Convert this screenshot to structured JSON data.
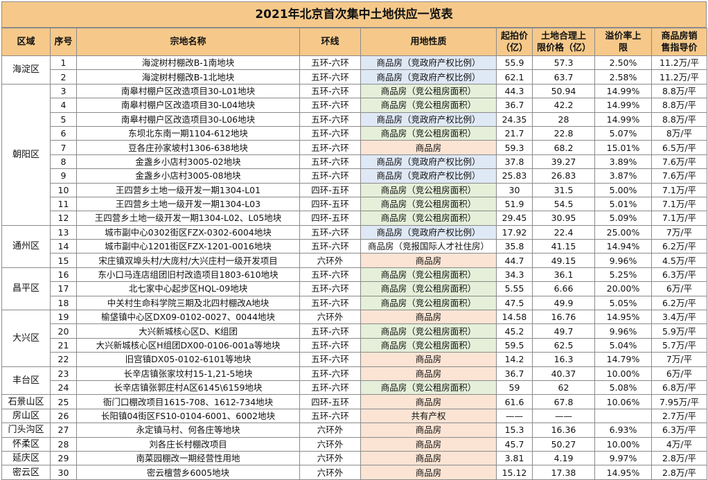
{
  "title": "2021年北京首次集中土地供应一览表",
  "header": {
    "district": "区域",
    "seq": "序号",
    "name": "宗地名称",
    "ring": "环线",
    "nature": "用地性质",
    "start_price": "起拍价（亿）",
    "cap_price": "土地合理上限价格（亿）",
    "premium": "溢价率上限",
    "guide_price": "商品房销售指导价"
  },
  "districts": [
    {
      "name": "海淀区",
      "span": 2
    },
    {
      "name": "朝阳区",
      "span": 10
    },
    {
      "name": "通州区",
      "span": 3
    },
    {
      "name": "昌平区",
      "span": 3
    },
    {
      "name": "大兴区",
      "span": 4
    },
    {
      "name": "丰台区",
      "span": 2
    },
    {
      "name": "石景山区",
      "span": 1
    },
    {
      "name": "房山区",
      "span": 1
    },
    {
      "name": "门头沟区",
      "span": 1
    },
    {
      "name": "怀柔区",
      "span": 1
    },
    {
      "name": "延庆区",
      "span": 1
    },
    {
      "name": "密云区",
      "span": 1
    }
  ],
  "rows": [
    {
      "seq": "1",
      "name": "海淀树村棚改B-1南地块",
      "ring": "五环-六环",
      "nature": "商品房（竞政府产权比例）",
      "start": "55.9",
      "cap": "57.3",
      "premium": "2.50%",
      "guide": "11.2万/平"
    },
    {
      "seq": "2",
      "name": "海淀树村棚改B-1北地块",
      "ring": "五环-六环",
      "nature": "商品房（竞政府产权比例）",
      "start": "62.1",
      "cap": "63.7",
      "premium": "2.58%",
      "guide": "11.2万/平"
    },
    {
      "seq": "3",
      "name": "南皋村棚户区改造项目30-L01地块",
      "ring": "五环-六环",
      "nature": "商品房（竞公租房面积）",
      "start": "44.3",
      "cap": "50.94",
      "premium": "14.99%",
      "guide": "8.8万/平"
    },
    {
      "seq": "4",
      "name": "南皋村棚户区改造项目30-L04地块",
      "ring": "五环-六环",
      "nature": "商品房（竞公租房面积）",
      "start": "36.7",
      "cap": "42.2",
      "premium": "14.99%",
      "guide": "8.8万/平"
    },
    {
      "seq": "5",
      "name": "南皋村棚户区改造项目30-L06地块",
      "ring": "五环-六环",
      "nature": "商品房（竞政府产权比例）",
      "start": "24.35",
      "cap": "28",
      "premium": "14.99%",
      "guide": "8.8万/平"
    },
    {
      "seq": "6",
      "name": "东坝北东南一期1104-612地块",
      "ring": "五环-六环",
      "nature": "商品房（竞公租房面积）",
      "start": "21.7",
      "cap": "22.8",
      "premium": "5.07%",
      "guide": "8万/平"
    },
    {
      "seq": "7",
      "name": "豆各庄孙家坡村1306-638地块",
      "ring": "五环-六环",
      "nature": "商品房",
      "start": "59.3",
      "cap": "68.2",
      "premium": "15.01%",
      "guide": "6.5万/平"
    },
    {
      "seq": "8",
      "name": "金盏乡小店村3005-02地块",
      "ring": "五环-六环",
      "nature": "商品房（竞政府产权比例）",
      "start": "37.8",
      "cap": "39.27",
      "premium": "3.89%",
      "guide": "7.6万/平"
    },
    {
      "seq": "9",
      "name": "金盏乡小店村3005-08地块",
      "ring": "五环-六环",
      "nature": "商品房（竞政府产权比例）",
      "start": "25.83",
      "cap": "26.83",
      "premium": "3.87%",
      "guide": "7.6万/平"
    },
    {
      "seq": "10",
      "name": "王四营乡土地一级开发一期1304-L01",
      "ring": "四环-五环",
      "nature": "商品房（竞公租房面积）",
      "start": "30",
      "cap": "31.5",
      "premium": "5.00%",
      "guide": "7.1万/平"
    },
    {
      "seq": "11",
      "name": "王四营乡土地一级开发一期1304-L03",
      "ring": "四环-五环",
      "nature": "商品房（竞公租房面积）",
      "start": "51.9",
      "cap": "54.5",
      "premium": "5.01%",
      "guide": "7.1万/平"
    },
    {
      "seq": "12",
      "name": "王四营乡土地一级开发一期1304-L02、L05地块",
      "ring": "四环-五环",
      "nature": "商品房（竞公租房面积）",
      "start": "29.45",
      "cap": "30.95",
      "premium": "5.09%",
      "guide": "7.1万/平"
    },
    {
      "seq": "13",
      "name": "城市副中心0302街区FZX-0302-6004地块",
      "ring": "五环-六环",
      "nature": "商品房（竞政府产权比例）",
      "start": "17.92",
      "cap": "22.4",
      "premium": "25.00%",
      "guide": "7万/平"
    },
    {
      "seq": "14",
      "name": "城市副中心1201街区FZX-1201-0016地块",
      "ring": "五环-六环",
      "nature": "商品房（竞报国际人才社住房）",
      "start": "35.8",
      "cap": "41.15",
      "premium": "14.94%",
      "guide": "6.2万/平"
    },
    {
      "seq": "15",
      "name": "宋庄镇双埠头村/大庞村/大兴庄村一级开发项目",
      "ring": "六环外",
      "nature": "商品房",
      "start": "44.7",
      "cap": "49.15",
      "premium": "9.96%",
      "guide": "4.5万/平"
    },
    {
      "seq": "16",
      "name": "东小口马连店组团旧村改造项目1803-610地块",
      "ring": "五环-六环",
      "nature": "商品房（竞公租房面积）",
      "start": "34.3",
      "cap": "36.1",
      "premium": "5.25%",
      "guide": "6.3万/平"
    },
    {
      "seq": "17",
      "name": "北七家中心起步区HQL-09地块",
      "ring": "五环-六环",
      "nature": "商品房（竞公租房面积）",
      "start": "5.55",
      "cap": "6.66",
      "premium": "20.00%",
      "guide": "6万/平"
    },
    {
      "seq": "18",
      "name": "中关村生命科学院三期及北四村棚改A地块",
      "ring": "五环-六环",
      "nature": "商品房（竞公租房面积）",
      "start": "47.5",
      "cap": "49.9",
      "premium": "5.05%",
      "guide": "6.2万/平"
    },
    {
      "seq": "19",
      "name": "榆垡镇中心区DX09-0102-0027、0044地块",
      "ring": "六环外",
      "nature": "商品房",
      "start": "14.58",
      "cap": "16.76",
      "premium": "14.95%",
      "guide": "3.4万/平"
    },
    {
      "seq": "20",
      "name": "大兴新城核心区D、K组团",
      "ring": "五环-六环",
      "nature": "商品房（竞公租房面积）",
      "start": "45.2",
      "cap": "49.7",
      "premium": "9.96%",
      "guide": "5.9万/平"
    },
    {
      "seq": "21",
      "name": "大兴新城核心区H组团DX00-0106-001a等地块",
      "ring": "五环-六环",
      "nature": "商品房（竞公租房面积）",
      "start": "59.5",
      "cap": "62.5",
      "premium": "5.04%",
      "guide": "5.7万/平"
    },
    {
      "seq": "22",
      "name": "旧宫镇DX05-0102-6101等地块",
      "ring": "五环-六环",
      "nature": "商品房",
      "start": "14.2",
      "cap": "16.3",
      "premium": "14.79%",
      "guide": "7万/平"
    },
    {
      "seq": "23",
      "name": "长辛店镇张家坟村15-1,21-5地块",
      "ring": "五环-六环",
      "nature": "商品房",
      "start": "36.7",
      "cap": "40.37",
      "premium": "10.00%",
      "guide": "6万/平"
    },
    {
      "seq": "24",
      "name": "长辛店镇张郭庄村A区6145\\6159地块",
      "ring": "五环-六环",
      "nature": "商品房（竞公租房面积）",
      "start": "59",
      "cap": "62",
      "premium": "5.08%",
      "guide": "6.8万/平"
    },
    {
      "seq": "25",
      "name": "衙门口棚改项目1615-708、1612-734地块",
      "ring": "四环-五环",
      "nature": "商品房",
      "start": "61.6",
      "cap": "67.8",
      "premium": "10.06%",
      "guide": "7.95万/平"
    },
    {
      "seq": "26",
      "name": "长阳镇04街区FS10-0104-6001、6002地块",
      "ring": "五环-六环",
      "nature": "共有产权",
      "start": "——",
      "cap": "——",
      "premium": "",
      "guide": "2.7万/平"
    },
    {
      "seq": "27",
      "name": "永定镇马村、何各庄等地块",
      "ring": "六环外",
      "nature": "商品房",
      "start": "15.3",
      "cap": "16.36",
      "premium": "6.93%",
      "guide": "6.3万/平"
    },
    {
      "seq": "28",
      "name": "刘各庄长村棚改项目",
      "ring": "六环外",
      "nature": "商品房",
      "start": "45.7",
      "cap": "50.27",
      "premium": "10.00%",
      "guide": "4万/平"
    },
    {
      "seq": "29",
      "name": "南菜园棚改一期经营性用地",
      "ring": "六环外",
      "nature": "商品房",
      "start": "3.81",
      "cap": "4.19",
      "premium": "9.97%",
      "guide": "2.8万/平"
    },
    {
      "seq": "30",
      "name": "密云檀营乡6005地块",
      "ring": "六环外",
      "nature": "商品房",
      "start": "15.12",
      "cap": "17.38",
      "premium": "14.95%",
      "guide": "2.8万/平"
    }
  ],
  "nature_colors": {
    "商品房（竞政府产权比例）": "#dfe8f5",
    "商品房（竞公租房面积）": "#e5efd9",
    "商品房": "#fbe4d4",
    "商品房（竞报国际人才社住房）": "#ffffff",
    "共有产权": "#fbe4d4"
  }
}
